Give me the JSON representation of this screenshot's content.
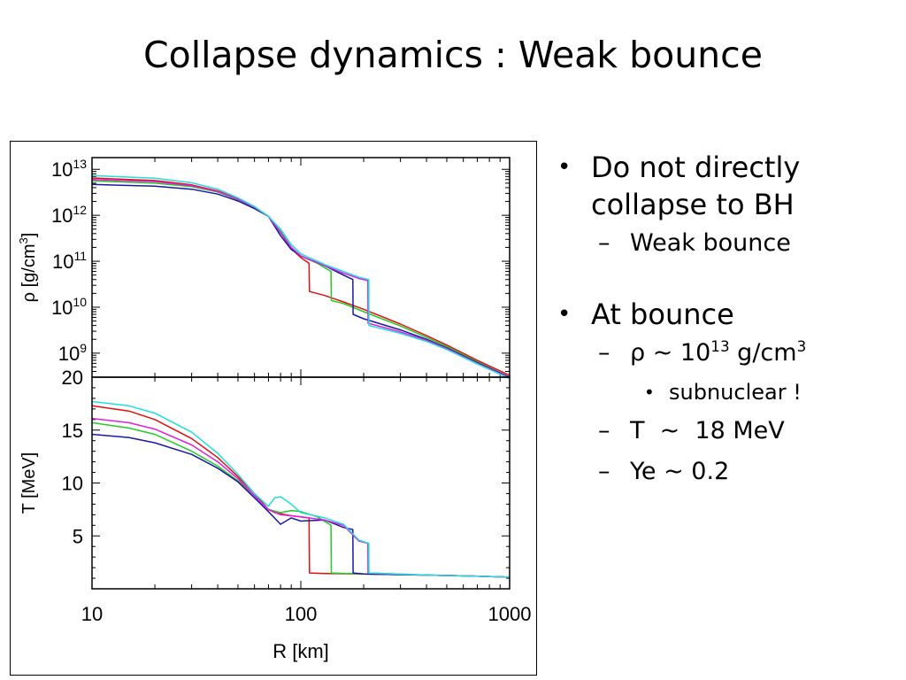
{
  "slide": {
    "title": "Collapse dynamics : Weak bounce"
  },
  "bullets": {
    "b1": {
      "text": "Do not directly collapse to BH"
    },
    "b1_sub": {
      "text": "Weak bounce"
    },
    "b2": {
      "text": "At bounce"
    },
    "rho": {
      "prefix": "ρ ~ 10",
      "exp": "13",
      "unit": " g/cm",
      "unit_exp": "3"
    },
    "rho_note": {
      "text": "subnuclear !"
    },
    "temp": {
      "text": "T  ~  18 MeV"
    },
    "ye": {
      "text": "Ye ~ 0.2"
    }
  },
  "chart_data": [
    {
      "type": "line",
      "xscale": "log",
      "yscale": "log",
      "xlim": [
        10,
        1000
      ],
      "ylim": [
        300000000,
        18000000000000
      ],
      "ylabel_base": "ρ [g/cm",
      "ylabel_exp": "3",
      "ylabel_end": "]",
      "yticks": [
        {
          "value": 10000000000000,
          "base": "10",
          "exp": "13"
        },
        {
          "value": 1000000000000,
          "base": "10",
          "exp": "12"
        },
        {
          "value": 100000000000,
          "base": "10",
          "exp": "11"
        },
        {
          "value": 10000000000,
          "base": "10",
          "exp": "10"
        },
        {
          "value": 1000000000,
          "base": "10",
          "exp": "9"
        }
      ],
      "series": [
        {
          "color": "#e01010",
          "shock": 110,
          "x": [
            10,
            20,
            30,
            40,
            50,
            60,
            70,
            80,
            90,
            100,
            109.5,
            110,
            130,
            160,
            200,
            300,
            400,
            500,
            700,
            1000
          ],
          "y": [
            6500000000000.0,
            5700000000000.0,
            4600000000000.0,
            3400000000000.0,
            2300000000000.0,
            1500000000000.0,
            950000000000.0,
            420000000000.0,
            190000000000.0,
            120000000000.0,
            90000000000.0,
            22000000000.0,
            18000000000.0,
            13000000000.0,
            9000000000.0,
            4300000000.0,
            2400000000.0,
            1500000000.0,
            700000000.0,
            330000000.0
          ]
        },
        {
          "color": "#22cc22",
          "shock": 140,
          "x": [
            10,
            20,
            30,
            40,
            50,
            60,
            70,
            80,
            90,
            100,
            120,
            139.5,
            140,
            160,
            200,
            300,
            400,
            500,
            700,
            1000
          ],
          "y": [
            5600000000000.0,
            5000000000000.0,
            4200000000000.0,
            3200000000000.0,
            2200000000000.0,
            1450000000000.0,
            950000000000.0,
            450000000000.0,
            200000000000.0,
            130000000000.0,
            90000000000.0,
            60000000000.0,
            14000000000.0,
            12000000000.0,
            8000000000.0,
            3900000000.0,
            2200000000.0,
            1400000000.0,
            650000000.0,
            300000000.0
          ]
        },
        {
          "color": "#1a1aa0",
          "shock": 178,
          "x": [
            10,
            20,
            30,
            40,
            50,
            60,
            70,
            80,
            90,
            100,
            130,
            160,
            177.5,
            178,
            200,
            300,
            400,
            500,
            700,
            1000
          ],
          "y": [
            4700000000000.0,
            4300000000000.0,
            3700000000000.0,
            2900000000000.0,
            2050000000000.0,
            1400000000000.0,
            950000000000.0,
            360000000000.0,
            180000000000.0,
            130000000000.0,
            80000000000.0,
            50000000000.0,
            40000000000.0,
            7000000000.0,
            5600000000.0,
            3200000000.0,
            2000000000.0,
            1300000000.0,
            620000000.0,
            300000000.0
          ]
        },
        {
          "color": "#dd22dd",
          "shock": 210,
          "x": [
            10,
            20,
            30,
            40,
            50,
            60,
            70,
            80,
            90,
            100,
            130,
            160,
            190,
            209.5,
            210,
            300,
            400,
            500,
            700,
            1000
          ],
          "y": [
            6000000000000.0,
            5400000000000.0,
            4400000000000.0,
            3300000000000.0,
            2250000000000.0,
            1500000000000.0,
            950000000000.0,
            420000000000.0,
            200000000000.0,
            130000000000.0,
            80000000000.0,
            55000000000.0,
            42000000000.0,
            38000000000.0,
            4500000000.0,
            2900000000.0,
            1900000000.0,
            1250000000.0,
            600000000.0,
            290000000.0
          ]
        },
        {
          "color": "#22dddd",
          "shock": 212,
          "x": [
            10,
            20,
            30,
            40,
            50,
            60,
            70,
            80,
            90,
            100,
            130,
            160,
            190,
            211.5,
            212,
            300,
            400,
            500,
            700,
            1000
          ],
          "y": [
            7300000000000.0,
            6400000000000.0,
            5100000000000.0,
            3700000000000.0,
            2400000000000.0,
            1550000000000.0,
            950000000000.0,
            500000000000.0,
            230000000000.0,
            145000000000.0,
            85000000000.0,
            60000000000.0,
            45000000000.0,
            40000000000.0,
            4000000000.0,
            2700000000.0,
            1800000000.0,
            1200000000.0,
            580000000.0,
            280000000.0
          ]
        }
      ]
    },
    {
      "type": "line",
      "xscale": "log",
      "yscale": "linear",
      "xlim": [
        10,
        1000
      ],
      "ylim": [
        0,
        20
      ],
      "xlabel": "R [km]",
      "ylabel": "T  [MeV]",
      "xticks": [
        {
          "value": 10,
          "label": "10"
        },
        {
          "value": 100,
          "label": "100"
        },
        {
          "value": 1000,
          "label": "1000"
        }
      ],
      "yticks": [
        {
          "value": 20,
          "label": "20"
        },
        {
          "value": 15,
          "label": "15"
        },
        {
          "value": 10,
          "label": "10"
        },
        {
          "value": 5,
          "label": "5"
        }
      ],
      "series": [
        {
          "color": "#e01010",
          "shock": 110,
          "x": [
            10,
            15,
            20,
            30,
            40,
            50,
            60,
            70,
            75,
            80,
            90,
            100,
            109.5,
            110,
            130,
            200,
            400,
            700,
            1000
          ],
          "y": [
            17.3,
            16.8,
            16.0,
            14.2,
            12.4,
            10.6,
            9.0,
            7.5,
            7.2,
            7.1,
            6.9,
            6.8,
            6.7,
            1.5,
            1.45,
            1.4,
            1.3,
            1.2,
            1.1
          ]
        },
        {
          "color": "#22cc22",
          "shock": 140,
          "x": [
            10,
            15,
            20,
            30,
            40,
            50,
            60,
            70,
            80,
            90,
            100,
            120,
            139.5,
            140,
            200,
            400,
            700,
            1000
          ],
          "y": [
            15.7,
            15.2,
            14.6,
            13.0,
            11.6,
            10.2,
            8.8,
            7.5,
            7.2,
            7.4,
            7.3,
            6.8,
            6.0,
            1.5,
            1.4,
            1.3,
            1.2,
            1.1
          ]
        },
        {
          "color": "#1a1aa0",
          "shock": 178,
          "x": [
            10,
            15,
            20,
            30,
            40,
            50,
            60,
            70,
            80,
            90,
            100,
            130,
            160,
            177.5,
            178,
            200,
            400,
            700,
            1000
          ],
          "y": [
            14.6,
            14.3,
            13.8,
            12.7,
            11.4,
            10.1,
            8.6,
            7.3,
            6.1,
            6.7,
            6.4,
            6.5,
            5.8,
            5.6,
            1.5,
            1.4,
            1.3,
            1.2,
            1.1
          ]
        },
        {
          "color": "#dd22dd",
          "shock": 210,
          "x": [
            10,
            15,
            20,
            30,
            40,
            50,
            60,
            70,
            80,
            90,
            100,
            130,
            160,
            190,
            209.5,
            210,
            400,
            700,
            1000
          ],
          "y": [
            16.1,
            15.7,
            15.1,
            13.6,
            12.0,
            10.4,
            8.8,
            7.5,
            7.0,
            6.9,
            6.8,
            6.5,
            6.0,
            4.5,
            4.3,
            1.5,
            1.3,
            1.2,
            1.1
          ]
        },
        {
          "color": "#22dddd",
          "shock": 212,
          "x": [
            10,
            15,
            20,
            30,
            40,
            50,
            60,
            70,
            75,
            80,
            90,
            100,
            130,
            160,
            190,
            211.5,
            212,
            400,
            700,
            1000
          ],
          "y": [
            17.7,
            17.3,
            16.6,
            14.8,
            12.8,
            10.8,
            9.0,
            7.8,
            8.6,
            8.7,
            8.0,
            7.2,
            6.7,
            6.1,
            4.6,
            4.3,
            1.5,
            1.3,
            1.2,
            1.1
          ]
        }
      ]
    }
  ]
}
